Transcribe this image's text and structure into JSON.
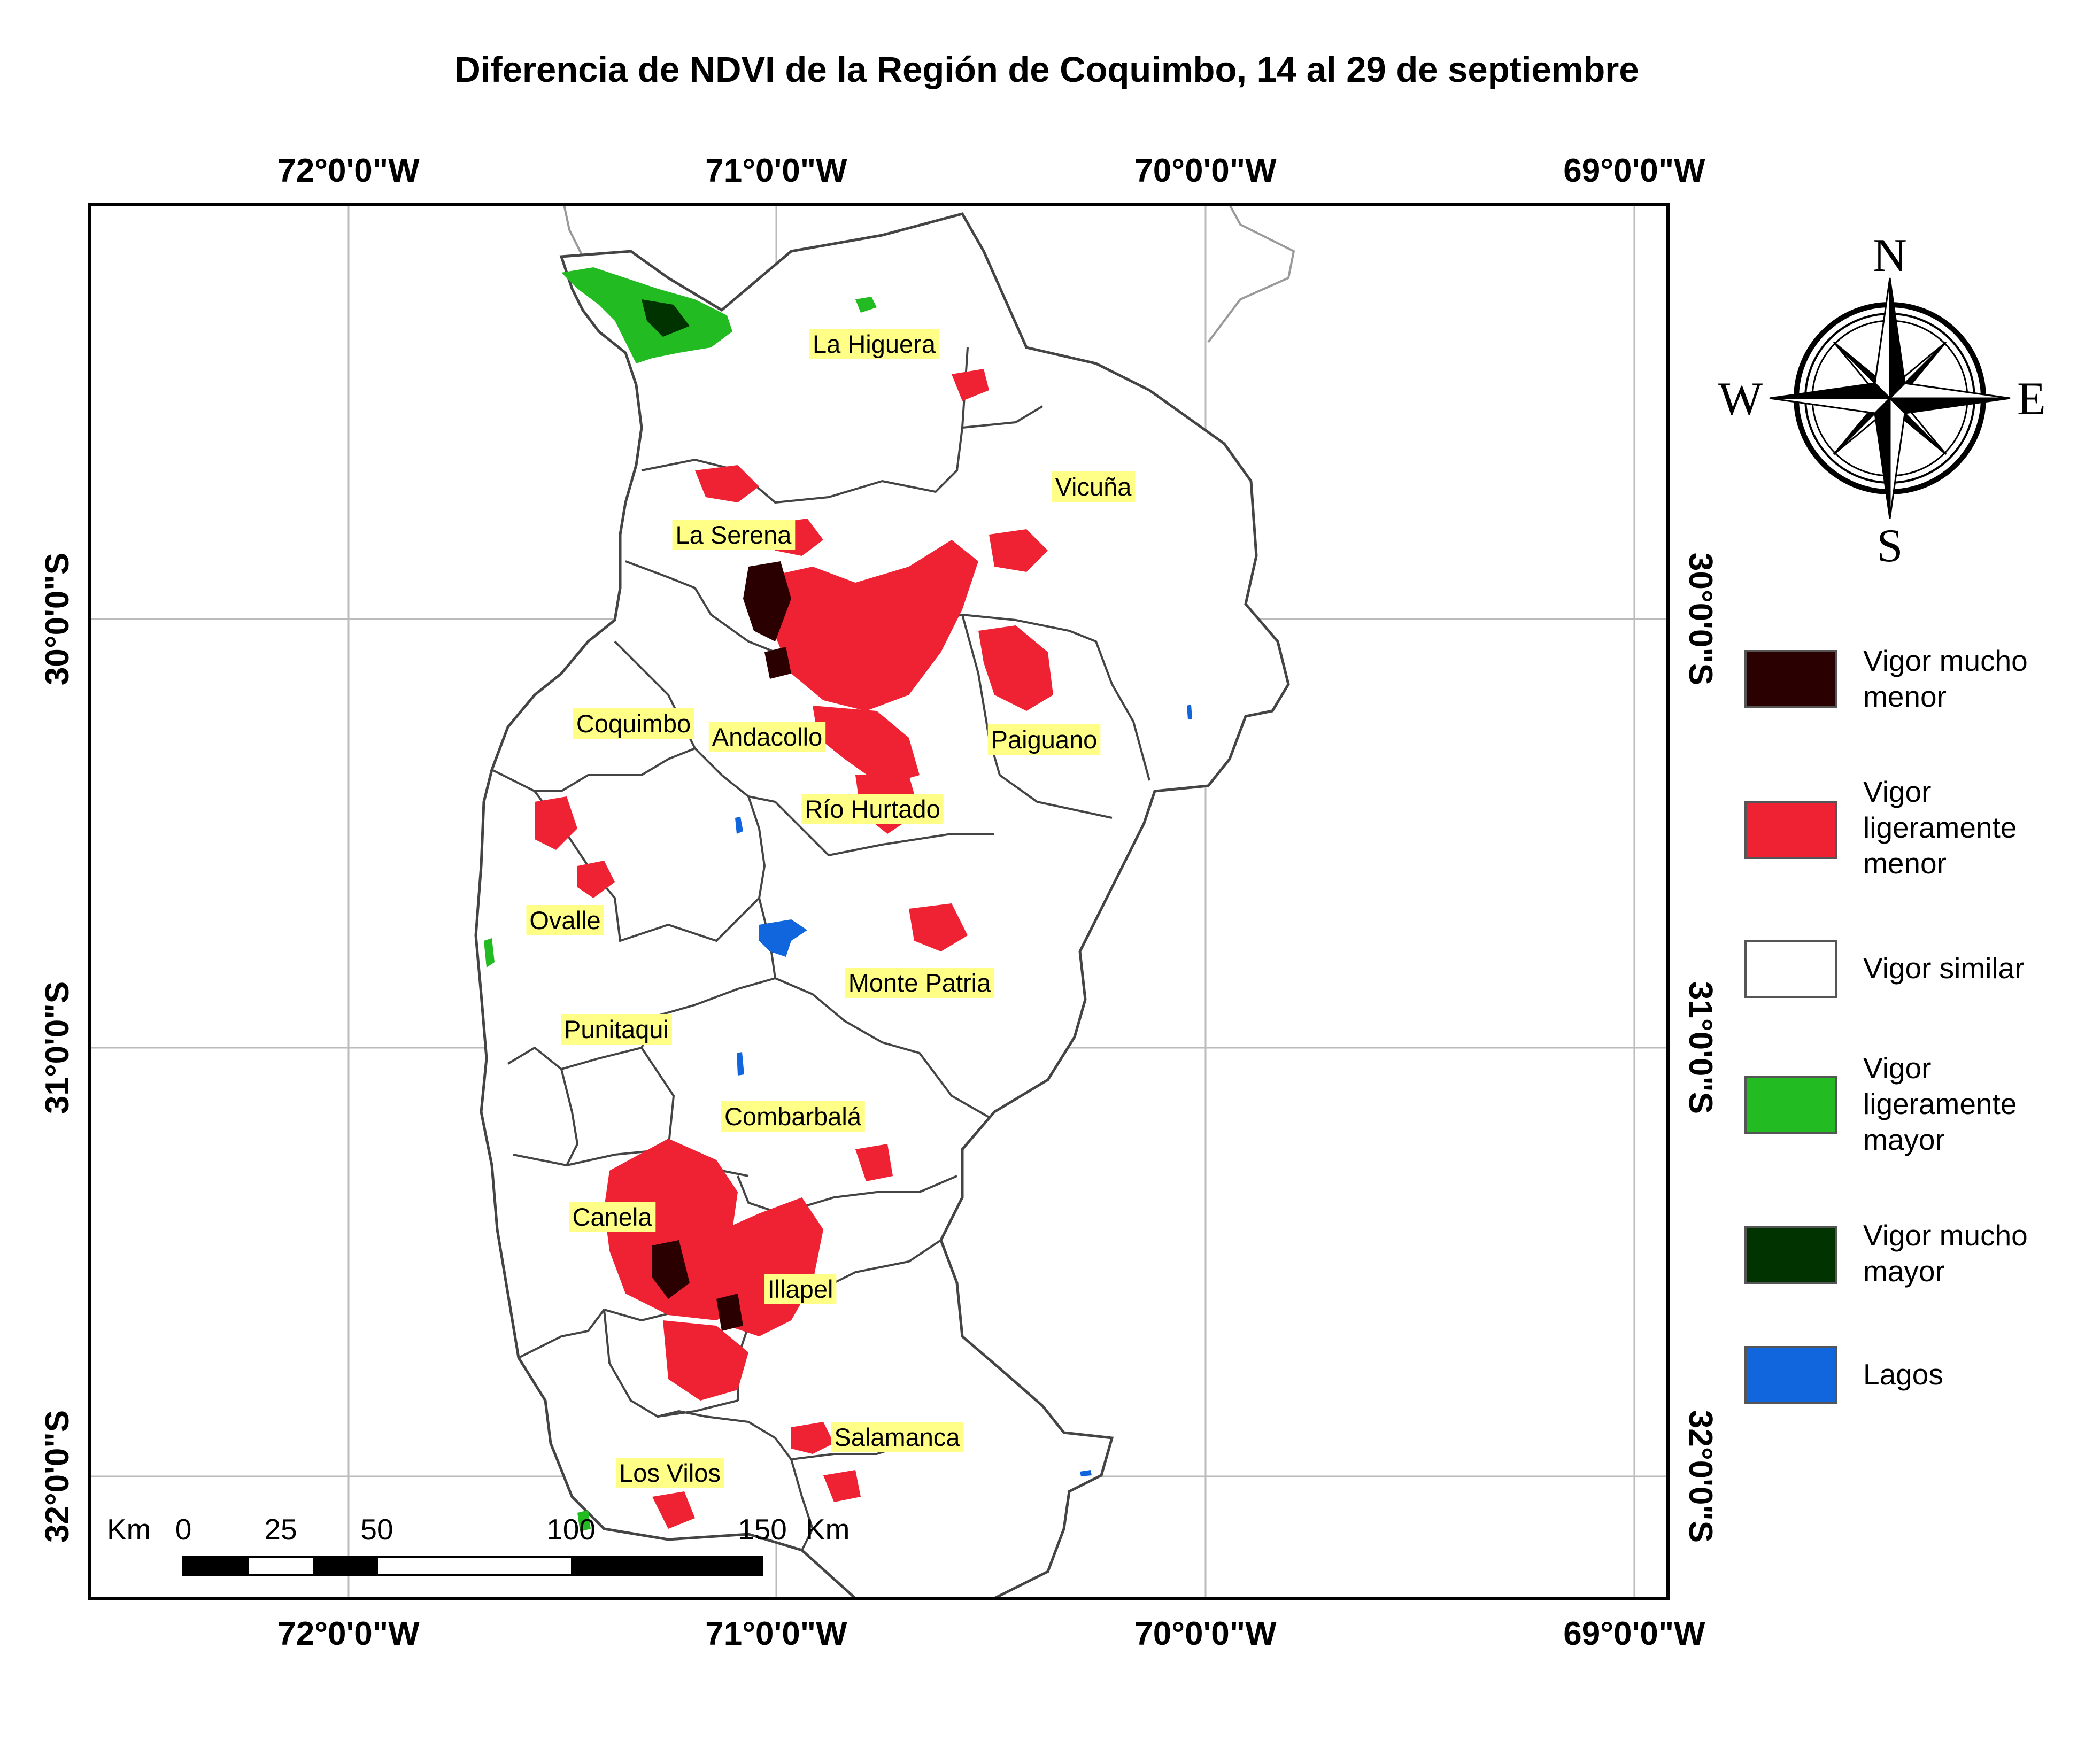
{
  "title": "Diferencia de NDVI de la Región de Coquimbo, 14 al 29 de septiembre",
  "longitude_labels": [
    "72°0'0\"W",
    "71°0'0\"W",
    "70°0'0\"W",
    "69°0'0\"W"
  ],
  "latitude_labels": [
    "30°0'0\"S",
    "31°0'0\"S",
    "32°0'0\"S"
  ],
  "comunas": [
    {
      "name": "La Higuera"
    },
    {
      "name": "Vicuña"
    },
    {
      "name": "La Serena"
    },
    {
      "name": "Coquimbo"
    },
    {
      "name": "Andacollo"
    },
    {
      "name": "Paiguano"
    },
    {
      "name": "Río Hurtado"
    },
    {
      "name": "Ovalle"
    },
    {
      "name": "Monte Patria"
    },
    {
      "name": "Punitaqui"
    },
    {
      "name": "Combarbalá"
    },
    {
      "name": "Canela"
    },
    {
      "name": "Illapel"
    },
    {
      "name": "Salamanca"
    },
    {
      "name": "Los Vilos"
    }
  ],
  "legend": [
    {
      "line1": "Vigor mucho",
      "line2": "menor",
      "line3": "",
      "color": "#2b0000"
    },
    {
      "line1": "Vigor",
      "line2": "ligeramente",
      "line3": "menor",
      "color": "#ee2233"
    },
    {
      "line1": "Vigor similar",
      "line2": "",
      "line3": "",
      "color": "#ffffff"
    },
    {
      "line1": "Vigor",
      "line2": "ligeramente",
      "line3": "mayor",
      "color": "#22bb22"
    },
    {
      "line1": "Vigor mucho",
      "line2": "mayor",
      "line3": "",
      "color": "#003300"
    },
    {
      "line1": "Lagos",
      "line2": "",
      "line3": "",
      "color": "#1166dd"
    }
  ],
  "scale_bar": {
    "unit_left": "Km",
    "ticks": [
      "0",
      "25",
      "50",
      "100",
      "150"
    ],
    "unit_right": "Km"
  },
  "compass": {
    "n": "N",
    "s": "S",
    "e": "E",
    "w": "W"
  }
}
